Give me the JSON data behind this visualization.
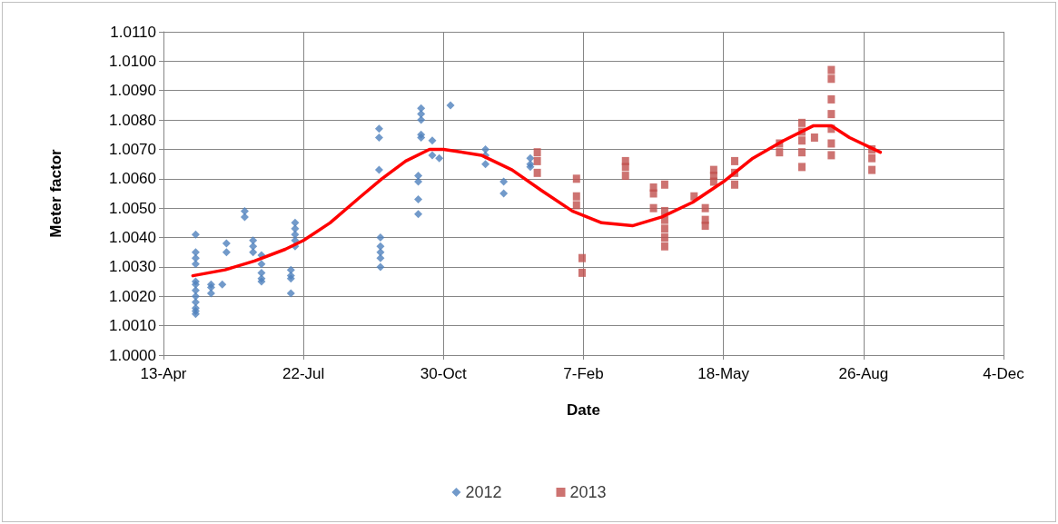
{
  "chart_data": {
    "type": "scatter",
    "xlabel": "Date",
    "ylabel": "Meter factor",
    "xlim": [
      "2012-04-13",
      "2013-12-04"
    ],
    "xticks": [
      {
        "value": "2012-04-13",
        "label": "13-Apr"
      },
      {
        "value": "2012-07-22",
        "label": "22-Jul"
      },
      {
        "value": "2012-10-30",
        "label": "30-Oct"
      },
      {
        "value": "2013-02-07",
        "label": "7-Feb"
      },
      {
        "value": "2013-05-18",
        "label": "18-May"
      },
      {
        "value": "2013-08-26",
        "label": "26-Aug"
      },
      {
        "value": "2013-12-04",
        "label": "4-Dec"
      }
    ],
    "ylim": [
      1.0,
      1.011
    ],
    "yticks": [
      {
        "value": 1.0,
        "label": "1.0000"
      },
      {
        "value": 1.001,
        "label": "1.0010"
      },
      {
        "value": 1.002,
        "label": "1.0020"
      },
      {
        "value": 1.003,
        "label": "1.0030"
      },
      {
        "value": 1.004,
        "label": "1.0040"
      },
      {
        "value": 1.005,
        "label": "1.0050"
      },
      {
        "value": 1.006,
        "label": "1.0060"
      },
      {
        "value": 1.007,
        "label": "1.0070"
      },
      {
        "value": 1.008,
        "label": "1.0080"
      },
      {
        "value": 1.009,
        "label": "1.0090"
      },
      {
        "value": 1.01,
        "label": "1.0100"
      },
      {
        "value": 1.011,
        "label": "1.0110"
      }
    ],
    "grid": true,
    "legend": "bottom",
    "series": [
      {
        "name": "2012",
        "marker": "diamond",
        "color": "#4f81bd",
        "x": [
          "2012-05-06",
          "2012-05-06",
          "2012-05-06",
          "2012-05-06",
          "2012-05-06",
          "2012-05-06",
          "2012-05-06",
          "2012-05-06",
          "2012-05-06",
          "2012-05-06",
          "2012-05-06",
          "2012-05-06",
          "2012-05-17",
          "2012-05-17",
          "2012-05-17",
          "2012-05-25",
          "2012-05-28",
          "2012-05-28",
          "2012-06-10",
          "2012-06-10",
          "2012-06-16",
          "2012-06-16",
          "2012-06-16",
          "2012-06-22",
          "2012-06-22",
          "2012-06-22",
          "2012-06-22",
          "2012-06-22",
          "2012-07-16",
          "2012-07-16",
          "2012-07-16",
          "2012-07-16",
          "2012-07-16",
          "2012-07-13",
          "2012-07-13",
          "2012-07-13",
          "2012-07-13",
          "2012-09-14",
          "2012-09-14",
          "2012-09-14",
          "2012-09-15",
          "2012-09-15",
          "2012-09-15",
          "2012-09-15",
          "2012-09-15",
          "2012-10-14",
          "2012-10-14",
          "2012-10-14",
          "2012-10-14",
          "2012-10-14",
          "2012-10-12",
          "2012-10-12",
          "2012-10-12",
          "2012-10-12",
          "2012-10-22",
          "2012-10-22",
          "2012-10-27",
          "2012-11-04",
          "2012-11-29",
          "2012-11-29",
          "2012-11-29",
          "2012-12-12",
          "2012-12-12",
          "2012-12-31",
          "2012-12-31",
          "2012-12-31"
        ],
        "values": [
          1.0041,
          1.0035,
          1.0033,
          1.0031,
          1.0025,
          1.0024,
          1.0022,
          1.002,
          1.0018,
          1.0016,
          1.0015,
          1.0014,
          1.0024,
          1.0023,
          1.0021,
          1.0024,
          1.0038,
          1.0035,
          1.0049,
          1.0047,
          1.0039,
          1.0037,
          1.0035,
          1.0034,
          1.0031,
          1.0028,
          1.0026,
          1.0025,
          1.0045,
          1.0043,
          1.0041,
          1.0039,
          1.0037,
          1.0029,
          1.0027,
          1.0026,
          1.0021,
          1.0077,
          1.0074,
          1.0063,
          1.004,
          1.0037,
          1.0035,
          1.0033,
          1.003,
          1.0084,
          1.0082,
          1.008,
          1.0075,
          1.0074,
          1.0061,
          1.0059,
          1.0053,
          1.0048,
          1.0073,
          1.0068,
          1.0067,
          1.0085,
          1.007,
          1.0068,
          1.0065,
          1.0059,
          1.0055,
          1.0067,
          1.0065,
          1.0064
        ]
      },
      {
        "name": "2013",
        "marker": "square",
        "color": "#c0504d",
        "x": [
          "2013-01-05",
          "2013-01-05",
          "2013-01-05",
          "2013-02-02",
          "2013-02-02",
          "2013-02-02",
          "2013-02-06",
          "2013-02-06",
          "2013-03-09",
          "2013-03-09",
          "2013-03-09",
          "2013-03-29",
          "2013-03-29",
          "2013-03-29",
          "2013-04-06",
          "2013-04-06",
          "2013-04-06",
          "2013-04-06",
          "2013-04-06",
          "2013-04-06",
          "2013-04-27",
          "2013-05-05",
          "2013-05-05",
          "2013-05-05",
          "2013-05-11",
          "2013-05-11",
          "2013-05-11",
          "2013-05-26",
          "2013-05-26",
          "2013-05-26",
          "2013-06-27",
          "2013-06-27",
          "2013-07-13",
          "2013-07-13",
          "2013-07-13",
          "2013-07-13",
          "2013-07-13",
          "2013-07-22",
          "2013-08-03",
          "2013-08-03",
          "2013-08-03",
          "2013-08-03",
          "2013-08-03",
          "2013-08-03",
          "2013-08-03",
          "2013-09-01",
          "2013-09-01",
          "2013-09-01"
        ],
        "values": [
          1.0069,
          1.0066,
          1.0062,
          1.006,
          1.0054,
          1.0051,
          1.0033,
          1.0028,
          1.0066,
          1.0064,
          1.0061,
          1.0057,
          1.0055,
          1.005,
          1.0058,
          1.0049,
          1.0046,
          1.0043,
          1.004,
          1.0037,
          1.0054,
          1.005,
          1.0046,
          1.0044,
          1.0063,
          1.0061,
          1.0059,
          1.0066,
          1.0062,
          1.0058,
          1.0072,
          1.0069,
          1.0079,
          1.0076,
          1.0073,
          1.0069,
          1.0064,
          1.0074,
          1.0097,
          1.0094,
          1.0087,
          1.0082,
          1.0077,
          1.0072,
          1.0068,
          1.007,
          1.0067,
          1.0063
        ]
      },
      {
        "type": "line",
        "marker": "none",
        "color": "#ff0000",
        "x": [
          "2012-05-04",
          "2012-05-27",
          "2012-06-17",
          "2012-07-09",
          "2012-07-22",
          "2012-08-10",
          "2012-09-01",
          "2012-09-16",
          "2012-10-03",
          "2012-10-20",
          "2012-10-30",
          "2012-11-26",
          "2012-12-18",
          "2013-01-08",
          "2013-01-30",
          "2013-02-20",
          "2013-03-14",
          "2013-04-04",
          "2013-04-26",
          "2013-05-18",
          "2013-06-08",
          "2013-06-30",
          "2013-07-21",
          "2013-08-03",
          "2013-08-16",
          "2013-09-07"
        ],
        "values": [
          1.0027,
          1.0029,
          1.0032,
          1.0036,
          1.0039,
          1.0045,
          1.0054,
          1.006,
          1.0066,
          1.007,
          1.007,
          1.0068,
          1.0063,
          1.0056,
          1.0049,
          1.0045,
          1.0044,
          1.0047,
          1.0052,
          1.0059,
          1.0067,
          1.0073,
          1.0078,
          1.0078,
          1.0074,
          1.0069
        ]
      }
    ]
  }
}
